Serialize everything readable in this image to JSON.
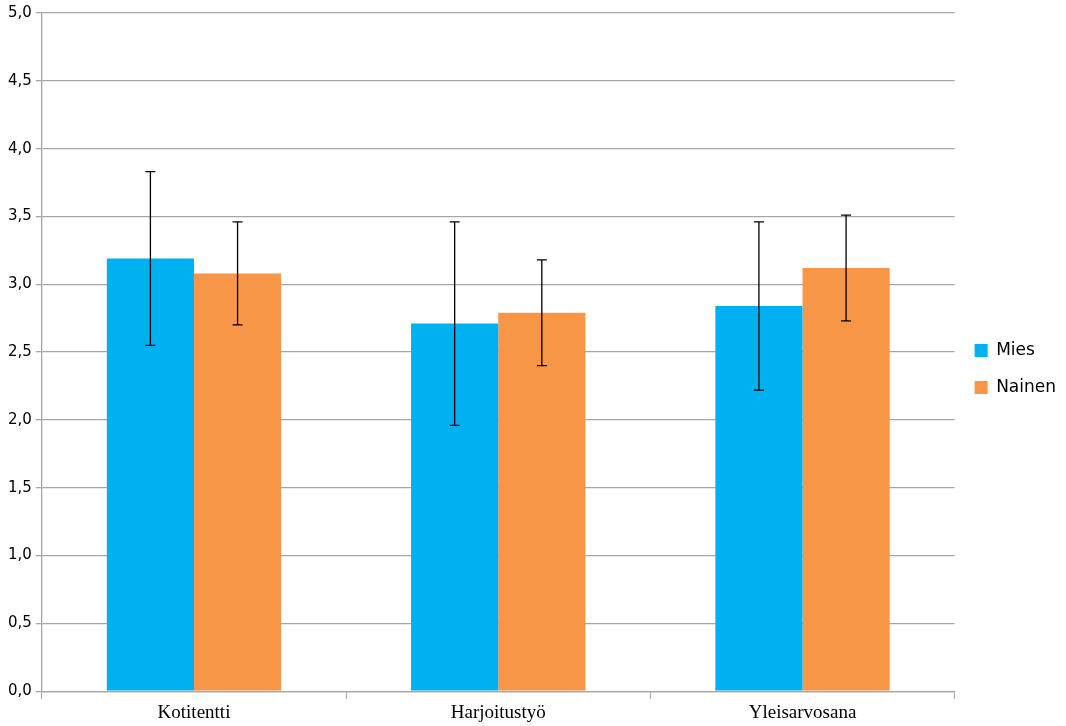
{
  "chart_data": {
    "type": "bar",
    "categories": [
      "Kotitentti",
      "Harjoitustyö",
      "Yleisarvosana"
    ],
    "series": [
      {
        "name": "Mies",
        "color": "#00b0f0",
        "values": [
          3.19,
          2.71,
          2.84
        ],
        "errors": [
          0.64,
          0.75,
          0.62
        ]
      },
      {
        "name": "Nainen",
        "color": "#f79646",
        "values": [
          3.08,
          2.79,
          3.12
        ],
        "errors": [
          0.38,
          0.39,
          0.39
        ]
      }
    ],
    "ylim": [
      0,
      5
    ],
    "yticks": [
      {
        "value": 0,
        "label": "0,0"
      },
      {
        "value": 0.5,
        "label": "0,5"
      },
      {
        "value": 1,
        "label": "1,0"
      },
      {
        "value": 1.5,
        "label": "1,5"
      },
      {
        "value": 2,
        "label": "2,0"
      },
      {
        "value": 2.5,
        "label": "2,5"
      },
      {
        "value": 3,
        "label": "3,0"
      },
      {
        "value": 3.5,
        "label": "3,5"
      },
      {
        "value": 4,
        "label": "4,0"
      },
      {
        "value": 4.5,
        "label": "4,5"
      },
      {
        "value": 5,
        "label": "5,0"
      }
    ],
    "grid": "y",
    "legend": "right"
  }
}
